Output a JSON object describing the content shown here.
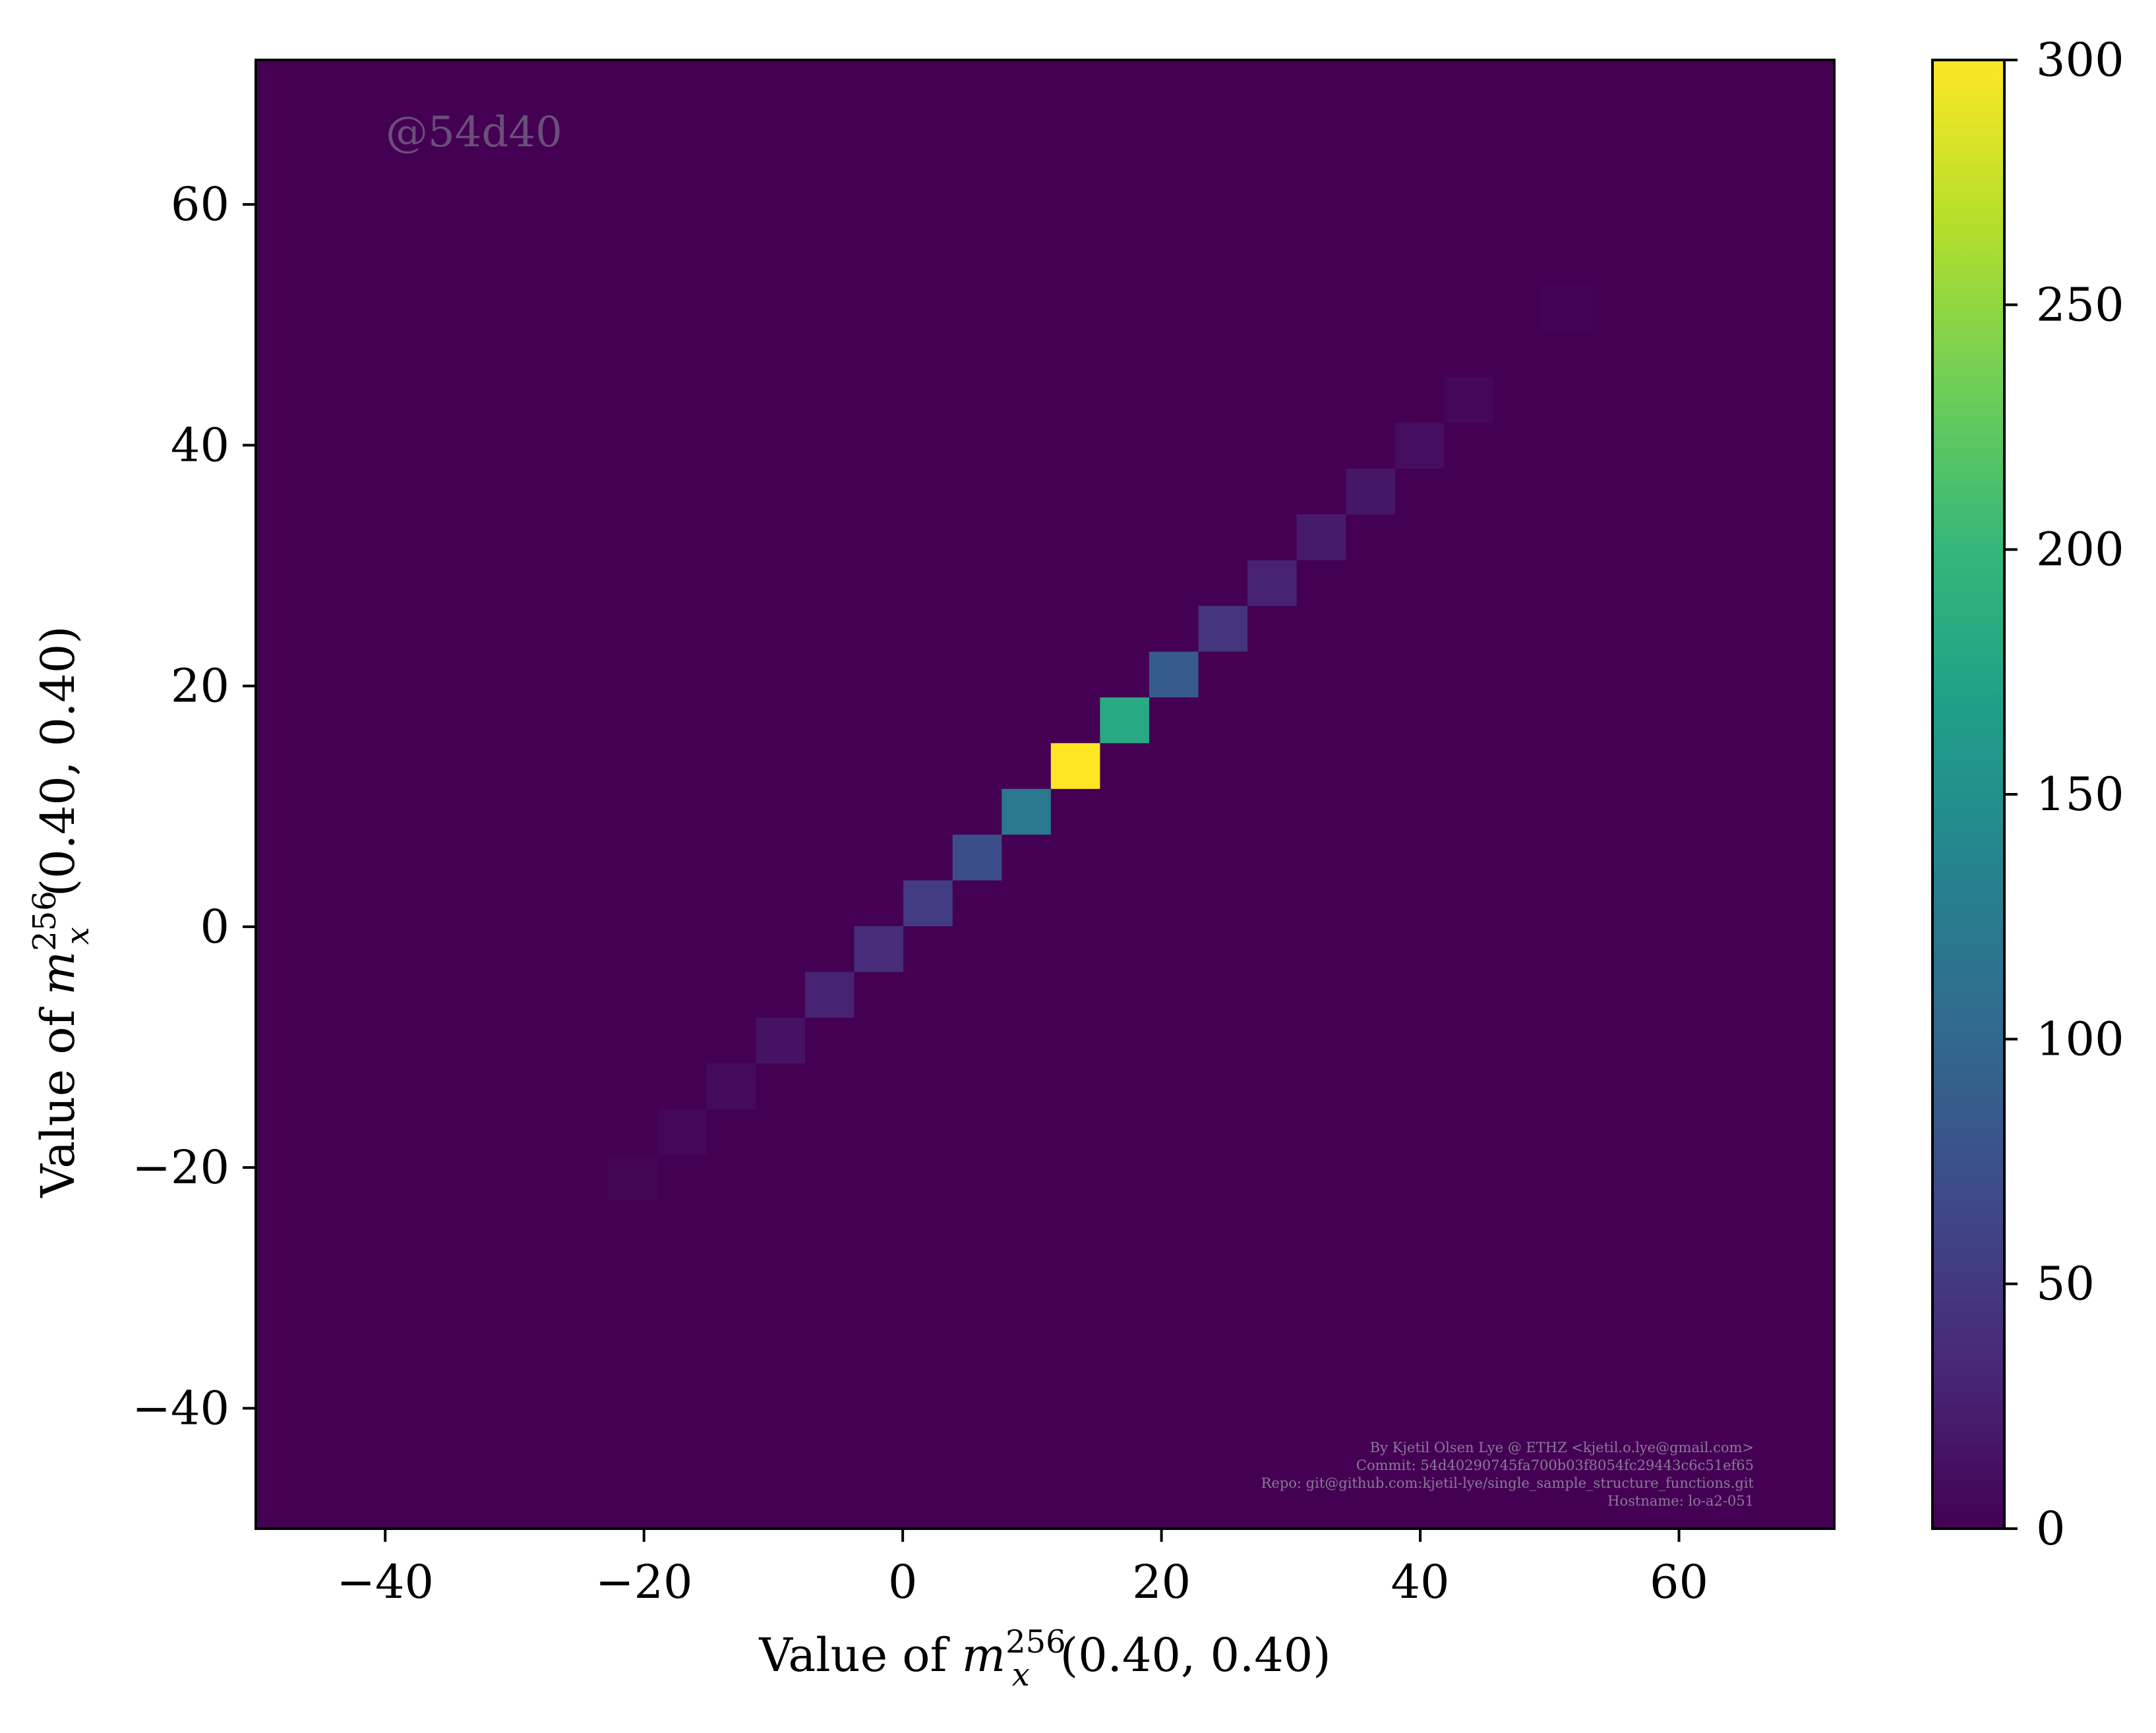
{
  "chart_data": {
    "type": "heatmap",
    "title": "",
    "xlabel": {
      "prefix": "Value of ",
      "var": "m",
      "sub": "x",
      "sup": "256",
      "args": "(0.40, 0.40)"
    },
    "ylabel": {
      "prefix": "Value of ",
      "var": "m",
      "sub": "x",
      "sup": "256",
      "args": "(0.40, 0.40)"
    },
    "xlim": [
      -50,
      72
    ],
    "ylim": [
      -50,
      72
    ],
    "xticks": [
      -40,
      -20,
      0,
      20,
      40,
      60
    ],
    "yticks": [
      -40,
      -20,
      0,
      20,
      40,
      60
    ],
    "xtick_labels": [
      "−40",
      "−20",
      "0",
      "20",
      "40",
      "60"
    ],
    "ytick_labels": [
      "−40",
      "−20",
      "0",
      "20",
      "40",
      "60"
    ],
    "bin_width": 3.8,
    "bin_origin": -22.75,
    "background_count": 0,
    "cells": [
      {
        "x": -20.85,
        "y": -20.85,
        "count": 3
      },
      {
        "x": -17.05,
        "y": -17.05,
        "count": 5
      },
      {
        "x": -13.25,
        "y": -13.25,
        "count": 9
      },
      {
        "x": -9.45,
        "y": -9.45,
        "count": 15
      },
      {
        "x": -5.65,
        "y": -5.65,
        "count": 28
      },
      {
        "x": -1.85,
        "y": -1.85,
        "count": 38
      },
      {
        "x": 1.95,
        "y": 1.95,
        "count": 55
      },
      {
        "x": 5.75,
        "y": 5.75,
        "count": 72
      },
      {
        "x": 9.55,
        "y": 9.55,
        "count": 120
      },
      {
        "x": 13.35,
        "y": 13.35,
        "count": 300
      },
      {
        "x": 17.15,
        "y": 17.15,
        "count": 180
      },
      {
        "x": 20.95,
        "y": 20.95,
        "count": 85
      },
      {
        "x": 24.75,
        "y": 24.75,
        "count": 45
      },
      {
        "x": 28.55,
        "y": 28.55,
        "count": 28
      },
      {
        "x": 32.35,
        "y": 32.35,
        "count": 22
      },
      {
        "x": 36.15,
        "y": 36.15,
        "count": 18
      },
      {
        "x": 39.95,
        "y": 39.95,
        "count": 10
      },
      {
        "x": 43.75,
        "y": 43.75,
        "count": 5
      },
      {
        "x": 51.35,
        "y": 51.35,
        "count": 2
      }
    ],
    "colorbar": {
      "colormap": "viridis",
      "range": [
        0,
        300
      ],
      "ticks": [
        0,
        50,
        100,
        150,
        200,
        250,
        300
      ],
      "tick_labels": [
        "0",
        "50",
        "100",
        "150",
        "200",
        "250",
        "300"
      ]
    },
    "annotations": {
      "watermark": "@54d40",
      "credits": [
        "By Kjetil Olsen Lye @ ETHZ <kjetil.o.lye@gmail.com>",
        "Commit: 54d40290745fa700b03f8054fc29443c6c51ef65",
        "Repo: git@github.com:kjetil-lye/single_sample_structure_functions.git",
        "Hostname: lo-a2-051"
      ]
    }
  },
  "colors": {
    "viridis": [
      "#440154",
      "#482878",
      "#3e4989",
      "#31688e",
      "#26828e",
      "#1f9e89",
      "#35b779",
      "#6ece58",
      "#b5de2b",
      "#fde725"
    ],
    "frame": "#000000",
    "background": "#ffffff"
  }
}
